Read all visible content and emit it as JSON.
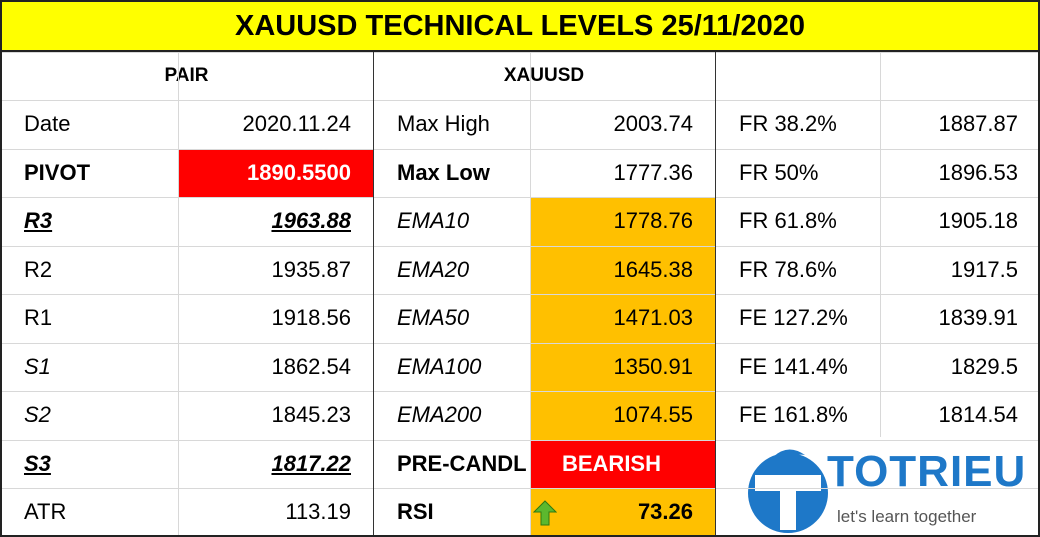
{
  "title": "XAUUSD TECHNICAL LEVELS 25/11/2020",
  "header": {
    "pair": "PAIR",
    "symbol": "XAUUSD"
  },
  "rows": [
    [
      "Date",
      "2020.11.24",
      "Max High",
      "2003.74",
      "FR 38.2%",
      "1887.87"
    ],
    [
      "PIVOT",
      "1890.5500",
      "Max Low",
      "1777.36",
      "FR 50%",
      "1896.53"
    ],
    [
      "R3",
      "1963.88",
      "EMA10",
      "1778.76",
      "FR 61.8%",
      "1905.18"
    ],
    [
      "R2",
      "1935.87",
      "EMA20",
      "1645.38",
      "FR 78.6%",
      "1917.5"
    ],
    [
      "R1",
      "1918.56",
      "EMA50",
      "1471.03",
      "FE 127.2%",
      "1839.91"
    ],
    [
      "S1",
      "1862.54",
      "EMA100",
      "1350.91",
      "FE 141.4%",
      "1829.5"
    ],
    [
      "S2",
      "1845.23",
      "EMA200",
      "1074.55",
      "FE 161.8%",
      "1814.54"
    ],
    [
      "S3",
      "1817.22",
      "PRE-CANDL",
      "BEARISH"
    ],
    [
      "ATR",
      "113.19",
      "RSI",
      "73.26"
    ]
  ],
  "logo": {
    "name": "TOTRIEU",
    "tagline": "let's learn together"
  }
}
